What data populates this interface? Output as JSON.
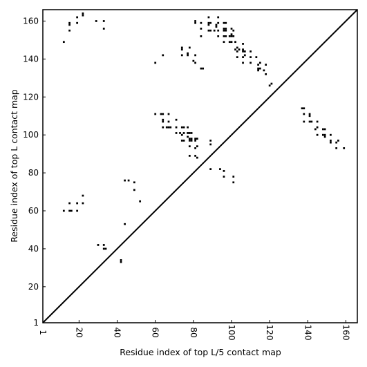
{
  "chart_data": {
    "type": "scatter",
    "title": "",
    "xlabel": "Residue index of top L/5 contact map",
    "ylabel": "Residue index of top L contact map",
    "xlim": [
      1,
      166
    ],
    "ylim": [
      1,
      166
    ],
    "xticks": [
      1,
      20,
      40,
      60,
      80,
      100,
      120,
      140,
      160
    ],
    "yticks": [
      1,
      20,
      40,
      60,
      80,
      100,
      120,
      140,
      160
    ],
    "grid": false,
    "legend": "none",
    "diagonal": true,
    "marker_color": "#000000",
    "series": [
      {
        "points": [
          [
            12,
            149
          ],
          [
            15,
            155
          ],
          [
            15,
            158
          ],
          [
            15,
            159
          ],
          [
            19,
            159
          ],
          [
            19,
            162
          ],
          [
            22,
            163
          ],
          [
            22,
            164
          ],
          [
            29,
            160
          ],
          [
            33,
            156
          ],
          [
            33,
            160
          ],
          [
            60,
            138
          ],
          [
            64,
            142
          ],
          [
            74,
            142
          ],
          [
            74,
            145
          ],
          [
            74,
            146
          ],
          [
            77,
            142
          ],
          [
            77,
            143
          ],
          [
            78,
            146
          ],
          [
            80,
            139
          ],
          [
            81,
            138
          ],
          [
            81,
            142
          ],
          [
            81,
            159
          ],
          [
            81,
            160
          ],
          [
            84,
            152
          ],
          [
            84,
            156
          ],
          [
            84,
            159
          ],
          [
            84,
            135
          ],
          [
            85,
            135
          ],
          [
            88,
            162
          ],
          [
            88,
            159
          ],
          [
            88,
            158
          ],
          [
            88,
            155
          ],
          [
            89,
            155
          ],
          [
            89,
            159
          ],
          [
            91,
            155
          ],
          [
            92,
            157
          ],
          [
            92,
            158
          ],
          [
            93,
            162
          ],
          [
            93,
            159
          ],
          [
            93,
            155
          ],
          [
            93,
            152
          ],
          [
            96,
            159
          ],
          [
            96,
            156
          ],
          [
            96,
            155
          ],
          [
            96,
            152
          ],
          [
            96,
            149
          ],
          [
            97,
            159
          ],
          [
            97,
            156
          ],
          [
            97,
            155
          ],
          [
            97,
            152
          ],
          [
            99,
            152
          ],
          [
            99,
            149
          ],
          [
            100,
            156
          ],
          [
            100,
            153
          ],
          [
            100,
            152
          ],
          [
            100,
            149
          ],
          [
            101,
            155
          ],
          [
            101,
            152
          ],
          [
            102,
            145
          ],
          [
            102,
            149
          ],
          [
            103,
            141
          ],
          [
            103,
            144
          ],
          [
            103,
            146
          ],
          [
            104,
            145
          ],
          [
            106,
            148
          ],
          [
            106,
            145
          ],
          [
            106,
            144
          ],
          [
            106,
            141
          ],
          [
            106,
            138
          ],
          [
            107,
            144
          ],
          [
            107,
            142
          ],
          [
            110,
            141
          ],
          [
            110,
            138
          ],
          [
            110,
            144
          ],
          [
            113,
            141
          ],
          [
            114,
            137
          ],
          [
            114,
            135
          ],
          [
            114,
            134
          ],
          [
            115,
            138
          ],
          [
            115,
            135
          ],
          [
            117,
            134
          ],
          [
            118,
            137
          ],
          [
            118,
            132
          ],
          [
            120,
            126
          ],
          [
            121,
            127
          ],
          [
            60,
            111
          ],
          [
            63,
            111
          ],
          [
            64,
            111
          ],
          [
            64,
            107
          ],
          [
            64,
            108
          ],
          [
            64,
            104
          ],
          [
            67,
            111
          ],
          [
            67,
            107
          ],
          [
            66,
            104
          ],
          [
            67,
            104
          ],
          [
            68,
            104
          ],
          [
            71,
            104
          ],
          [
            71,
            101
          ],
          [
            71,
            108
          ],
          [
            73,
            101
          ],
          [
            74,
            104
          ],
          [
            74,
            100
          ],
          [
            74,
            97
          ],
          [
            75,
            104
          ],
          [
            75,
            101
          ],
          [
            75,
            97
          ],
          [
            77,
            104
          ],
          [
            77,
            101
          ],
          [
            77,
            99
          ],
          [
            78,
            101
          ],
          [
            78,
            97
          ],
          [
            78,
            98
          ],
          [
            78,
            94
          ],
          [
            78,
            89
          ],
          [
            79,
            101
          ],
          [
            79,
            98
          ],
          [
            79,
            97
          ],
          [
            81,
            98
          ],
          [
            81,
            97
          ],
          [
            81,
            93
          ],
          [
            81,
            89
          ],
          [
            82,
            98
          ],
          [
            82,
            94
          ],
          [
            82,
            88
          ],
          [
            89,
            97
          ],
          [
            89,
            95
          ],
          [
            89,
            82
          ],
          [
            94,
            82
          ],
          [
            96,
            81
          ],
          [
            96,
            78
          ],
          [
            101,
            78
          ],
          [
            101,
            75
          ],
          [
            137,
            114
          ],
          [
            138,
            114
          ],
          [
            138,
            111
          ],
          [
            138,
            107
          ],
          [
            141,
            111
          ],
          [
            141,
            110
          ],
          [
            141,
            107
          ],
          [
            142,
            107
          ],
          [
            144,
            103
          ],
          [
            145,
            104
          ],
          [
            145,
            107
          ],
          [
            145,
            100
          ],
          [
            148,
            103
          ],
          [
            148,
            100
          ],
          [
            149,
            103
          ],
          [
            149,
            99
          ],
          [
            149,
            100
          ],
          [
            152,
            100
          ],
          [
            152,
            97
          ],
          [
            152,
            96
          ],
          [
            155,
            96
          ],
          [
            155,
            93
          ],
          [
            156,
            97
          ],
          [
            159,
            93
          ],
          [
            12,
            60
          ],
          [
            15,
            64
          ],
          [
            15,
            60
          ],
          [
            16,
            60
          ],
          [
            19,
            64
          ],
          [
            19,
            60
          ],
          [
            22,
            64
          ],
          [
            22,
            68
          ],
          [
            30,
            42
          ],
          [
            33,
            42
          ],
          [
            33,
            40
          ],
          [
            34,
            40
          ],
          [
            42,
            34
          ],
          [
            42,
            33
          ],
          [
            44,
            76
          ],
          [
            44,
            53
          ],
          [
            46,
            76
          ],
          [
            49,
            75
          ],
          [
            49,
            71
          ],
          [
            52,
            65
          ]
        ]
      }
    ]
  }
}
